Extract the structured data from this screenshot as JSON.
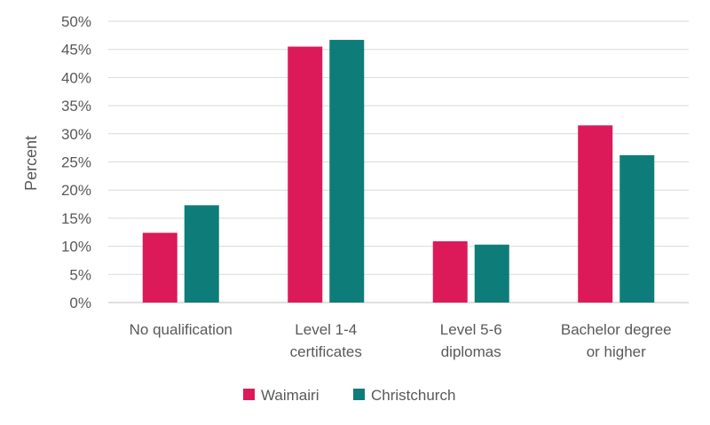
{
  "chart_data": {
    "type": "bar",
    "categories": [
      [
        "No qualification"
      ],
      [
        "Level 1-4",
        "certificates"
      ],
      [
        "Level 5-6",
        "diplomas"
      ],
      [
        "Bachelor degree",
        "or higher"
      ]
    ],
    "series": [
      {
        "name": "Waimairi",
        "color": "#dc1a5a",
        "values": [
          12.4,
          45.5,
          10.9,
          31.5
        ]
      },
      {
        "name": "Christchurch",
        "color": "#0e7d7a",
        "values": [
          17.3,
          46.7,
          10.3,
          26.2
        ]
      }
    ],
    "title": "",
    "xlabel": "",
    "ylabel": "Percent",
    "ylim": [
      0,
      50
    ],
    "ytick_step": 5,
    "ytick_format": "percent",
    "grid": true,
    "legend_position": "bottom"
  }
}
